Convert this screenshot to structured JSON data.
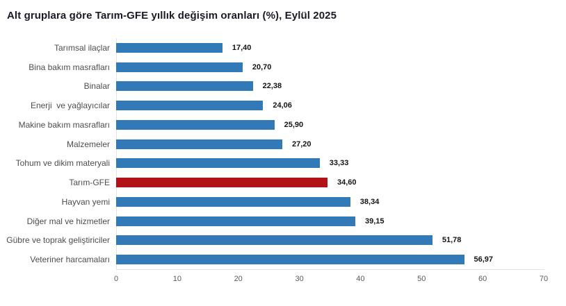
{
  "header": {
    "title": "Alt gruplara göre Tarım-GFE yıllık değişim oranları (%), Eylül 2025"
  },
  "colors": {
    "bar_default": "#3279b8",
    "bar_highlight": "#b01218",
    "title_text": "#1a1a26",
    "category_text": "#4d4d4d",
    "value_text": "#141414",
    "tick_text": "#595959",
    "axis_line": "#e0e0e0"
  },
  "chart_data": {
    "type": "bar",
    "orientation": "horizontal",
    "title": "Alt gruplara göre Tarım-GFE yıllık değişim oranları (%), Eylül 2025",
    "categories": [
      "Tarımsal ilaçlar",
      "Bina bakım masrafları",
      "Binalar",
      "Enerji  ve yağlayıcılar",
      "Makine bakım masrafları",
      "Malzemeler",
      "Tohum ve dikim materyali",
      "Tarım-GFE",
      "Hayvan yemi",
      "Diğer mal ve hizmetler",
      "Gübre ve toprak geliştiriciler",
      "Veteriner harcamaları"
    ],
    "values": [
      17.4,
      20.7,
      22.38,
      24.06,
      25.9,
      27.2,
      33.33,
      34.6,
      38.34,
      39.15,
      51.78,
      56.97
    ],
    "value_labels": [
      "17,40",
      "20,70",
      "22,38",
      "24,06",
      "25,90",
      "27,20",
      "33,33",
      "34,60",
      "38,34",
      "39,15",
      "51,78",
      "56,97"
    ],
    "highlight_category": "Tarım-GFE",
    "highlight_index": 7,
    "xlabel": "",
    "ylabel": "",
    "xlim": [
      0,
      70
    ],
    "x_ticks": [
      "0",
      "10",
      "20",
      "30",
      "40",
      "50",
      "60",
      "70"
    ],
    "grid": false,
    "legend": "none"
  }
}
